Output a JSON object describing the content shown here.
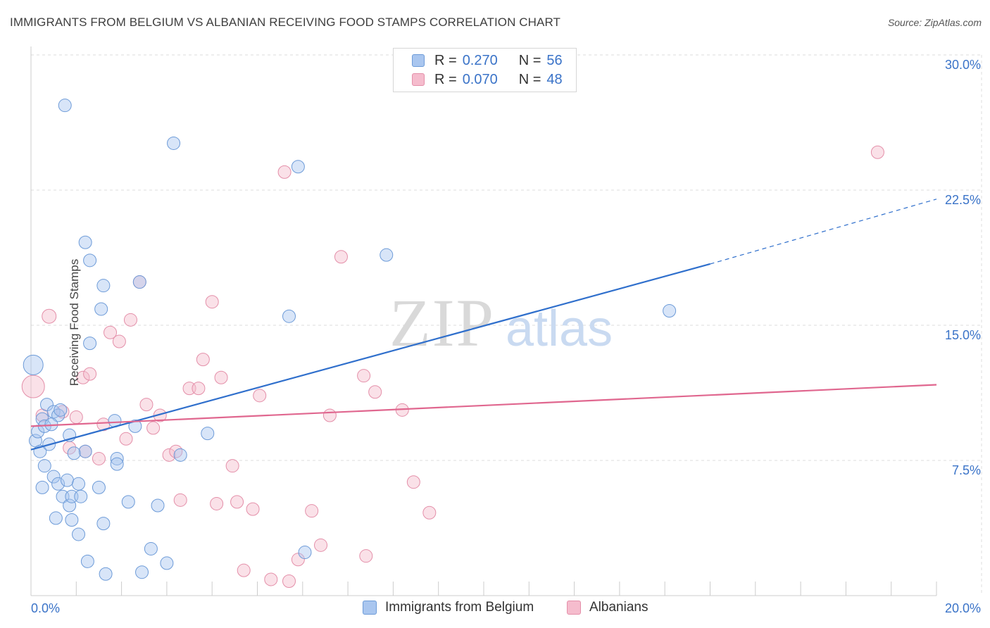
{
  "title": "IMMIGRANTS FROM BELGIUM VS ALBANIAN RECEIVING FOOD STAMPS CORRELATION CHART",
  "source": "Source: ZipAtlas.com",
  "watermark": {
    "zip": "ZIP",
    "atlas": "atlas"
  },
  "legend": {
    "series1": {
      "r_label": "R =",
      "r_value": "0.270",
      "n_label": "N =",
      "n_value": "56"
    },
    "series2": {
      "r_label": "R =",
      "r_value": "0.070",
      "n_label": "N =",
      "n_value": "48"
    }
  },
  "colors": {
    "blue_fill": "#a9c6ef",
    "blue_stroke": "#6d9bd8",
    "blue_line": "#2f6fcc",
    "pink_fill": "#f5bccd",
    "pink_stroke": "#e48fa9",
    "pink_line": "#e0678f",
    "tick_text": "#3a73c8",
    "grid": "#dcdcdc"
  },
  "chart_data": {
    "type": "scatter",
    "title": "IMMIGRANTS FROM BELGIUM VS ALBANIAN RECEIVING FOOD STAMPS CORRELATION CHART",
    "xlabel": "",
    "ylabel": "Receiving Food Stamps",
    "xlim": [
      0,
      20
    ],
    "ylim": [
      0,
      30
    ],
    "x_tick_labels": [
      "0.0%",
      "20.0%"
    ],
    "y_ticks": [
      7.5,
      15.0,
      22.5,
      30.0
    ],
    "y_tick_labels": [
      "7.5%",
      "15.0%",
      "22.5%",
      "30.0%"
    ],
    "grid": true,
    "legend_position": "top-center",
    "series": [
      {
        "name": "Immigrants from Belgium",
        "color": "#a9c6ef",
        "points": [
          [
            0.05,
            12.8,
            14
          ],
          [
            0.1,
            8.6,
            9
          ],
          [
            0.15,
            9.1,
            9
          ],
          [
            0.2,
            8.0,
            9
          ],
          [
            0.25,
            9.8,
            9
          ],
          [
            0.3,
            9.4,
            9
          ],
          [
            0.35,
            10.6,
            9
          ],
          [
            0.4,
            8.4,
            9
          ],
          [
            0.5,
            10.2,
            9
          ],
          [
            0.6,
            10.0,
            9
          ],
          [
            0.3,
            7.2,
            9
          ],
          [
            0.25,
            6.0,
            9
          ],
          [
            0.5,
            6.6,
            9
          ],
          [
            0.6,
            6.2,
            9
          ],
          [
            0.8,
            6.4,
            9
          ],
          [
            0.7,
            5.5,
            9
          ],
          [
            0.85,
            5.0,
            9
          ],
          [
            0.9,
            5.5,
            9
          ],
          [
            0.55,
            4.3,
            9
          ],
          [
            0.9,
            4.2,
            9
          ],
          [
            1.05,
            6.2,
            9
          ],
          [
            1.1,
            5.5,
            9
          ],
          [
            1.05,
            3.4,
            9
          ],
          [
            1.25,
            1.9,
            9
          ],
          [
            1.2,
            8.0,
            9
          ],
          [
            0.95,
            7.9,
            9
          ],
          [
            0.85,
            8.9,
            9
          ],
          [
            1.5,
            6.0,
            9
          ],
          [
            1.6,
            4.0,
            9
          ],
          [
            1.65,
            1.2,
            9
          ],
          [
            1.85,
            9.7,
            9
          ],
          [
            1.9,
            7.6,
            9
          ],
          [
            1.9,
            7.3,
            9
          ],
          [
            2.15,
            5.2,
            9
          ],
          [
            2.3,
            9.4,
            9
          ],
          [
            2.45,
            1.3,
            9
          ],
          [
            2.65,
            2.6,
            9
          ],
          [
            2.8,
            5.0,
            9
          ],
          [
            3.0,
            1.8,
            9
          ],
          [
            3.3,
            7.8,
            9
          ],
          [
            3.9,
            9.0,
            9
          ],
          [
            0.75,
            27.2,
            9
          ],
          [
            1.2,
            19.6,
            9
          ],
          [
            1.3,
            18.6,
            9
          ],
          [
            1.6,
            17.2,
            9
          ],
          [
            1.55,
            15.9,
            9
          ],
          [
            1.3,
            14.0,
            9
          ],
          [
            2.4,
            17.4,
            9
          ],
          [
            3.15,
            25.1,
            9
          ],
          [
            5.7,
            15.5,
            9
          ],
          [
            5.9,
            23.8,
            9
          ],
          [
            6.05,
            2.4,
            9
          ],
          [
            7.85,
            18.9,
            9
          ],
          [
            14.1,
            15.8,
            9
          ],
          [
            0.65,
            10.3,
            9
          ],
          [
            0.45,
            9.5,
            9
          ]
        ]
      },
      {
        "name": "Albanians",
        "color": "#f5bccd",
        "points": [
          [
            0.05,
            11.6,
            16
          ],
          [
            0.25,
            10.0,
            9
          ],
          [
            0.4,
            15.5,
            10
          ],
          [
            0.7,
            10.2,
            9
          ],
          [
            1.0,
            9.9,
            9
          ],
          [
            1.15,
            12.1,
            9
          ],
          [
            1.3,
            12.3,
            9
          ],
          [
            0.85,
            8.2,
            9
          ],
          [
            1.5,
            7.6,
            9
          ],
          [
            1.6,
            9.5,
            9
          ],
          [
            1.75,
            14.6,
            9
          ],
          [
            1.95,
            14.1,
            9
          ],
          [
            2.1,
            8.7,
            9
          ],
          [
            2.2,
            15.3,
            9
          ],
          [
            2.4,
            17.4,
            9
          ],
          [
            2.55,
            10.6,
            9
          ],
          [
            2.7,
            9.3,
            9
          ],
          [
            2.85,
            10.0,
            9
          ],
          [
            3.05,
            7.8,
            9
          ],
          [
            3.2,
            8.0,
            9
          ],
          [
            3.3,
            5.3,
            9
          ],
          [
            3.5,
            11.5,
            9
          ],
          [
            3.7,
            11.5,
            9
          ],
          [
            3.8,
            13.1,
            9
          ],
          [
            4.0,
            16.3,
            9
          ],
          [
            4.1,
            5.1,
            9
          ],
          [
            4.2,
            12.1,
            9
          ],
          [
            4.45,
            7.2,
            9
          ],
          [
            4.55,
            5.2,
            9
          ],
          [
            4.7,
            1.4,
            9
          ],
          [
            4.9,
            4.8,
            9
          ],
          [
            5.05,
            11.1,
            9
          ],
          [
            5.3,
            0.9,
            9
          ],
          [
            5.7,
            0.8,
            9
          ],
          [
            5.6,
            23.5,
            9
          ],
          [
            5.9,
            2.0,
            9
          ],
          [
            6.2,
            4.7,
            9
          ],
          [
            6.4,
            2.8,
            9
          ],
          [
            6.6,
            10.0,
            9
          ],
          [
            6.85,
            18.8,
            9
          ],
          [
            7.35,
            12.2,
            9
          ],
          [
            7.4,
            2.2,
            9
          ],
          [
            7.6,
            11.3,
            9
          ],
          [
            8.2,
            10.3,
            9
          ],
          [
            8.45,
            6.3,
            9
          ],
          [
            8.8,
            4.6,
            9
          ],
          [
            18.7,
            24.6,
            9
          ],
          [
            1.2,
            8.0,
            9
          ]
        ]
      }
    ],
    "trend_lines": [
      {
        "series": "Immigrants from Belgium",
        "x_start": 0.0,
        "y_start": 8.1,
        "x_solid_end": 15.0,
        "y_solid_end": 18.4,
        "x_dash_end": 20.0,
        "y_dash_end": 22.0
      },
      {
        "series": "Albanians",
        "x_start": 0.0,
        "y_start": 9.4,
        "x_end": 20.0,
        "y_end": 11.7
      }
    ]
  }
}
